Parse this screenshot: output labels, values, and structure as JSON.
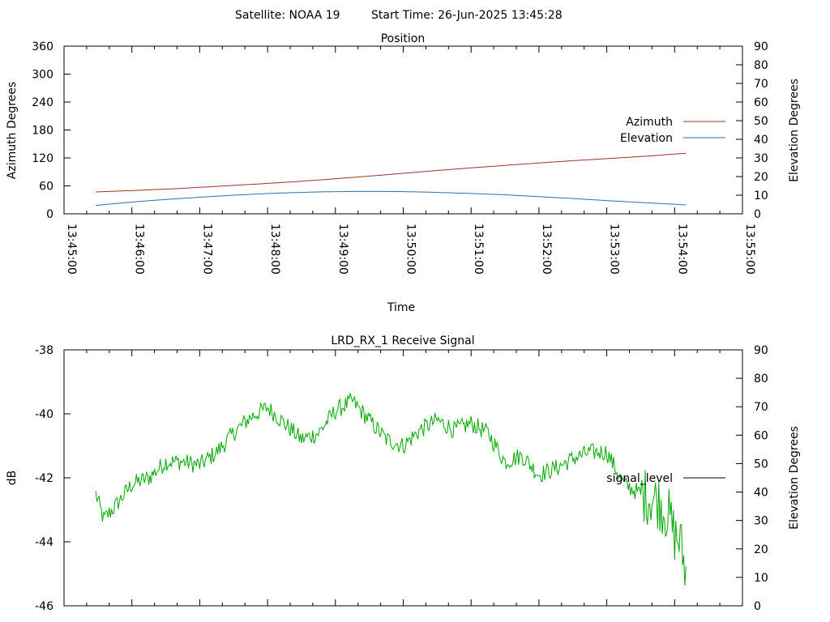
{
  "header": {
    "satellite": "Satellite: NOAA 19",
    "start_time": "Start Time: 26-Jun-2025 13:45:28"
  },
  "chart_data": [
    {
      "type": "line",
      "title": "Position",
      "xlabel": "Time",
      "ylabel": "Azimuth Degrees",
      "y2label": "Elevation Degrees",
      "x_ticks": [
        "13:45:00",
        "13:46:00",
        "13:47:00",
        "13:48:00",
        "13:49:00",
        "13:50:00",
        "13:51:00",
        "13:52:00",
        "13:53:00",
        "13:54:00",
        "13:55:00"
      ],
      "xlim": [
        "13:45:00",
        "13:55:00"
      ],
      "ylim": [
        0,
        360
      ],
      "y_ticks": [
        0,
        60,
        120,
        180,
        240,
        300,
        360
      ],
      "y2lim": [
        0,
        90
      ],
      "y2_ticks": [
        0,
        10,
        20,
        30,
        40,
        50,
        60,
        70,
        80,
        90
      ],
      "legend_position": "right",
      "grid": false,
      "series": [
        {
          "name": "Azimuth",
          "axis": "y",
          "color": "#a0302c",
          "x": [
            "13:45:28",
            "13:46:30",
            "13:47:30",
            "13:48:30",
            "13:49:30",
            "13:50:30",
            "13:51:30",
            "13:52:30",
            "13:53:30",
            "13:54:10"
          ],
          "values": [
            47,
            53,
            61,
            70,
            81,
            93,
            104,
            114,
            123,
            130
          ]
        },
        {
          "name": "Elevation",
          "axis": "y2",
          "color": "#2f6fa7",
          "x": [
            "13:45:28",
            "13:46:00",
            "13:46:30",
            "13:47:00",
            "13:47:30",
            "13:48:00",
            "13:48:30",
            "13:49:00",
            "13:49:30",
            "13:50:00",
            "13:50:30",
            "13:51:00",
            "13:51:30",
            "13:52:00",
            "13:52:30",
            "13:53:00",
            "13:53:30",
            "13:54:10"
          ],
          "values": [
            4.5,
            6.3,
            7.7,
            8.9,
            10.0,
            10.9,
            11.5,
            11.9,
            12.0,
            11.9,
            11.5,
            10.9,
            10.2,
            9.2,
            8.2,
            7.1,
            6.1,
            4.8
          ]
        }
      ]
    },
    {
      "type": "line",
      "title": "LRD_RX_1 Receive Signal",
      "xlabel": "",
      "ylabel": "dB",
      "y2label": "Elevation Degrees",
      "xlim": [
        "13:45:00",
        "13:55:00"
      ],
      "ylim": [
        -46,
        -38
      ],
      "y_ticks": [
        -46,
        -44,
        -42,
        -40,
        -38
      ],
      "y2lim": [
        0,
        90
      ],
      "y2_ticks": [
        0,
        10,
        20,
        30,
        40,
        50,
        60,
        70,
        80,
        90
      ],
      "legend_position": "right",
      "grid": false,
      "series": [
        {
          "name": "signal_level",
          "color": "#00a800",
          "x": [
            "13:45:28",
            "13:45:35",
            "13:45:45",
            "13:46:00",
            "13:46:15",
            "13:46:30",
            "13:46:45",
            "13:47:00",
            "13:47:15",
            "13:47:30",
            "13:47:45",
            "13:48:00",
            "13:48:15",
            "13:48:30",
            "13:48:45",
            "13:49:00",
            "13:49:15",
            "13:49:30",
            "13:49:45",
            "13:50:00",
            "13:50:15",
            "13:50:30",
            "13:50:45",
            "13:51:00",
            "13:51:15",
            "13:51:30",
            "13:51:45",
            "13:52:00",
            "13:52:15",
            "13:52:30",
            "13:52:45",
            "13:53:00",
            "13:53:15",
            "13:53:30",
            "13:53:45",
            "13:53:55",
            "13:54:00",
            "13:54:05",
            "13:54:10"
          ],
          "values": [
            -42.5,
            -43.3,
            -42.9,
            -42.2,
            -42.0,
            -41.5,
            -41.5,
            -41.6,
            -41.2,
            -40.6,
            -40.1,
            -39.8,
            -40.3,
            -40.8,
            -40.6,
            -39.9,
            -39.6,
            -40.2,
            -40.8,
            -41.0,
            -40.5,
            -40.2,
            -40.5,
            -40.3,
            -40.6,
            -41.5,
            -41.3,
            -41.9,
            -41.7,
            -41.4,
            -41.2,
            -41.2,
            -42.2,
            -42.5,
            -42.7,
            -43.2,
            -43.8,
            -44.0,
            -45.0
          ]
        }
      ]
    }
  ]
}
